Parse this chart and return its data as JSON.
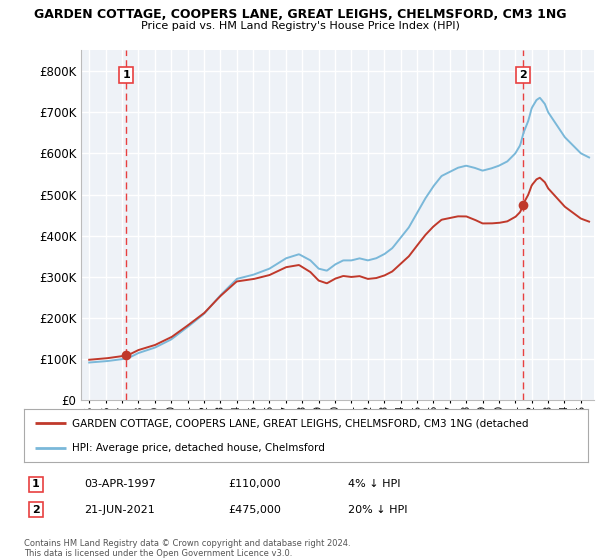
{
  "title1": "GARDEN COTTAGE, COOPERS LANE, GREAT LEIGHS, CHELMSFORD, CM3 1NG",
  "title2": "Price paid vs. HM Land Registry's House Price Index (HPI)",
  "legend_label1": "GARDEN COTTAGE, COOPERS LANE, GREAT LEIGHS, CHELMSFORD, CM3 1NG (detached",
  "legend_label2": "HPI: Average price, detached house, Chelmsford",
  "sale1_label": "1",
  "sale1_date": "03-APR-1997",
  "sale1_price": "£110,000",
  "sale1_hpi": "4% ↓ HPI",
  "sale2_label": "2",
  "sale2_date": "21-JUN-2021",
  "sale2_price": "£475,000",
  "sale2_hpi": "20% ↓ HPI",
  "footnote": "Contains HM Land Registry data © Crown copyright and database right 2024.\nThis data is licensed under the Open Government Licence v3.0.",
  "sale1_year": 1997.25,
  "sale2_year": 2021.47,
  "sale1_value": 110000,
  "sale2_value": 475000,
  "ylim": [
    0,
    850000
  ],
  "xlim_start": 1994.5,
  "xlim_end": 2025.8,
  "hpi_color": "#7ab8d9",
  "price_color": "#c0392b",
  "plot_bg": "#eef2f7",
  "grid_color": "#ffffff",
  "dashed_color": "#e84040",
  "fig_bg": "#ffffff"
}
